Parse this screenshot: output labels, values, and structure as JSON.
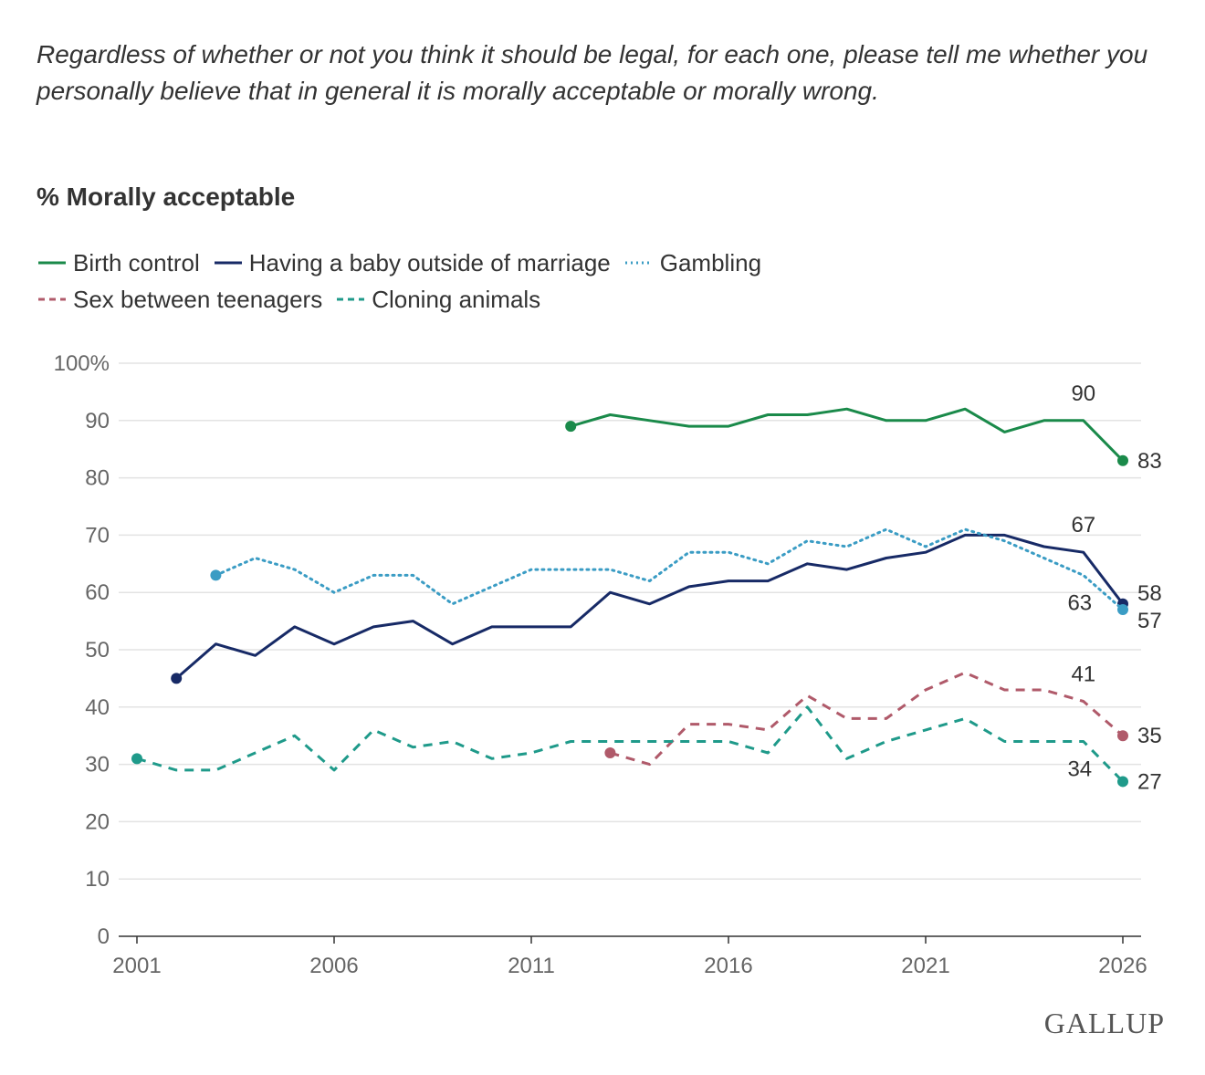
{
  "question": "Regardless of whether or not you think it should be legal, for each one, please tell me whether you personally believe that in general it is morally acceptable or morally wrong.",
  "brand": "GALLUP",
  "chart_data": {
    "type": "line",
    "title": "% Morally acceptable",
    "xlim": [
      2001,
      2026
    ],
    "ylim": [
      0,
      100
    ],
    "x_ticks": [
      2001,
      2006,
      2011,
      2016,
      2021,
      2026
    ],
    "y_ticks": [
      0,
      10,
      20,
      30,
      40,
      50,
      60,
      70,
      80,
      90,
      100
    ],
    "y_tick_labels": [
      "0",
      "10",
      "20",
      "30",
      "40",
      "50",
      "60",
      "70",
      "80",
      "90",
      "100%"
    ],
    "grid": "horizontal",
    "legend_position": "top",
    "series": [
      {
        "name": "Birth control",
        "color": "#1a8a4a",
        "style": "solid",
        "x": [
          2012,
          2013,
          2014,
          2015,
          2016,
          2017,
          2018,
          2019,
          2020,
          2021,
          2022,
          2023,
          2024,
          2025,
          2026
        ],
        "y": [
          89,
          91,
          90,
          89,
          89,
          91,
          91,
          92,
          90,
          90,
          92,
          88,
          90,
          90,
          83
        ]
      },
      {
        "name": "Having a baby outside of marriage",
        "color": "#172a66",
        "style": "solid",
        "x": [
          2002,
          2003,
          2004,
          2005,
          2006,
          2007,
          2008,
          2009,
          2010,
          2011,
          2012,
          2013,
          2014,
          2015,
          2016,
          2017,
          2018,
          2019,
          2020,
          2021,
          2022,
          2023,
          2024,
          2025,
          2026
        ],
        "y": [
          45,
          51,
          49,
          54,
          51,
          54,
          55,
          51,
          54,
          54,
          54,
          60,
          58,
          61,
          62,
          62,
          65,
          64,
          66,
          67,
          70,
          70,
          68,
          67,
          58
        ]
      },
      {
        "name": "Gambling",
        "color": "#3a9cc4",
        "style": "dotted",
        "x": [
          2003,
          2004,
          2005,
          2006,
          2007,
          2008,
          2009,
          2010,
          2011,
          2012,
          2013,
          2014,
          2015,
          2016,
          2017,
          2018,
          2019,
          2020,
          2021,
          2022,
          2023,
          2024,
          2025,
          2026
        ],
        "y": [
          63,
          66,
          64,
          60,
          63,
          63,
          58,
          61,
          64,
          64,
          64,
          62,
          67,
          67,
          65,
          69,
          68,
          71,
          68,
          71,
          69,
          66,
          63,
          57
        ]
      },
      {
        "name": "Sex between teenagers",
        "color": "#b05a6a",
        "style": "dashed",
        "x": [
          2013,
          2014,
          2015,
          2016,
          2017,
          2018,
          2019,
          2020,
          2021,
          2022,
          2023,
          2024,
          2025,
          2026
        ],
        "y": [
          32,
          30,
          37,
          37,
          36,
          42,
          38,
          38,
          43,
          46,
          43,
          43,
          41,
          35
        ]
      },
      {
        "name": "Cloning animals",
        "color": "#1f9a8a",
        "style": "dashed",
        "x": [
          2001,
          2002,
          2003,
          2004,
          2005,
          2006,
          2007,
          2008,
          2009,
          2010,
          2011,
          2012,
          2013,
          2014,
          2015,
          2016,
          2017,
          2018,
          2019,
          2020,
          2021,
          2022,
          2023,
          2024,
          2025,
          2026
        ],
        "y": [
          31,
          29,
          29,
          32,
          35,
          29,
          36,
          33,
          34,
          31,
          32,
          34,
          34,
          34,
          34,
          34,
          32,
          40,
          31,
          34,
          36,
          38,
          34,
          34,
          34,
          27
        ]
      }
    ],
    "annotations": [
      {
        "series": 0,
        "x": 2025,
        "y": 90,
        "text": "90",
        "pos": "above"
      },
      {
        "series": 0,
        "x": 2026,
        "y": 83,
        "text": "83",
        "pos": "right"
      },
      {
        "series": 1,
        "x": 2025,
        "y": 67,
        "text": "67",
        "pos": "above"
      },
      {
        "series": 1,
        "x": 2026,
        "y": 58,
        "text": "58",
        "pos": "right-up"
      },
      {
        "series": 2,
        "x": 2025,
        "y": 63,
        "text": "63",
        "pos": "below"
      },
      {
        "series": 2,
        "x": 2026,
        "y": 57,
        "text": "57",
        "pos": "right-down"
      },
      {
        "series": 3,
        "x": 2025,
        "y": 41,
        "text": "41",
        "pos": "above"
      },
      {
        "series": 3,
        "x": 2026,
        "y": 35,
        "text": "35",
        "pos": "right"
      },
      {
        "series": 4,
        "x": 2025,
        "y": 34,
        "text": "34",
        "pos": "below"
      },
      {
        "series": 4,
        "x": 2026,
        "y": 27,
        "text": "27",
        "pos": "right"
      }
    ]
  }
}
